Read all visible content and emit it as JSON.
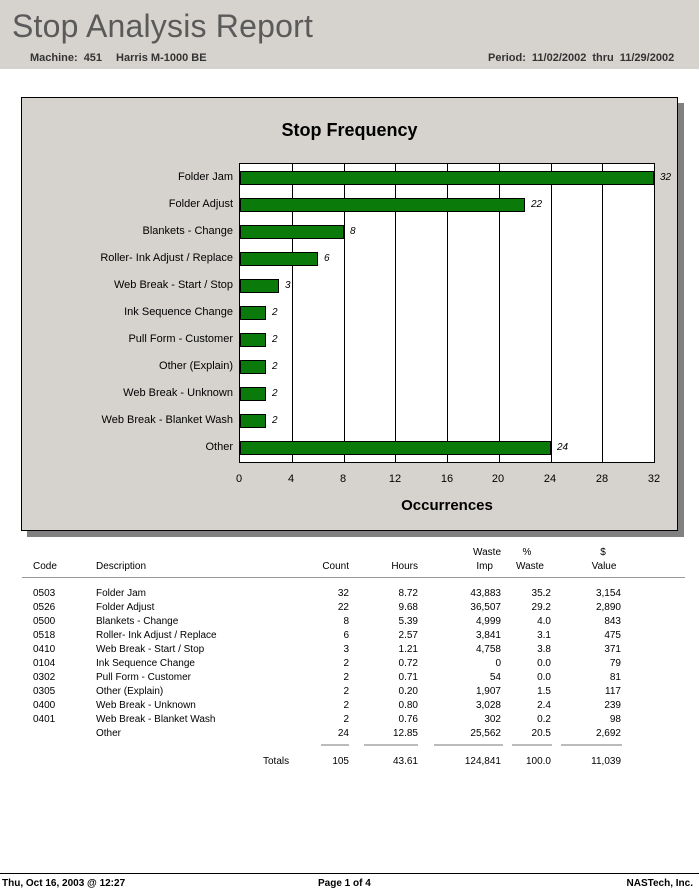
{
  "report": {
    "title": "Stop Analysis Report",
    "machine_label": "Machine:",
    "machine_number": "451",
    "machine_name": "Harris M-1000 BE",
    "period_label": "Period:",
    "period_start": "11/02/2002",
    "period_sep": "thru",
    "period_end": "11/29/2002"
  },
  "chart_data": {
    "type": "bar",
    "orientation": "horizontal",
    "title": "Stop Frequency",
    "xlabel": "Occurrences",
    "ylabel": "",
    "categories": [
      "Folder Jam",
      "Folder Adjust",
      "Blankets - Change",
      "Roller- Ink Adjust / Replace",
      "Web Break - Start / Stop",
      "Ink Sequence Change",
      "Pull Form - Customer",
      "Other (Explain)",
      "Web Break - Unknown",
      "Web Break - Blanket Wash",
      "Other"
    ],
    "values": [
      32,
      22,
      8,
      6,
      3,
      2,
      2,
      2,
      2,
      2,
      24
    ],
    "xlim": [
      0,
      32
    ],
    "xticks": [
      "0",
      "4",
      "8",
      "12",
      "16",
      "20",
      "24",
      "28",
      "32"
    ],
    "grid": "vertical",
    "bar_color": "#0a7a0a"
  },
  "table": {
    "headers": {
      "code": "Code",
      "description": "Description",
      "count": "Count",
      "hours": "Hours",
      "waste_top": "Waste",
      "waste_bottom": "Imp",
      "pct_top": "%",
      "pct_bottom": "Waste",
      "value_top": "$",
      "value_bottom": "Value"
    },
    "rows": [
      {
        "code": "0503",
        "description": "Folder Jam",
        "count": "32",
        "hours": "8.72",
        "waste": "43,883",
        "pct": "35.2",
        "value": "3,154"
      },
      {
        "code": "0526",
        "description": "Folder Adjust",
        "count": "22",
        "hours": "9.68",
        "waste": "36,507",
        "pct": "29.2",
        "value": "2,890"
      },
      {
        "code": "0500",
        "description": "Blankets - Change",
        "count": "8",
        "hours": "5.39",
        "waste": "4,999",
        "pct": "4.0",
        "value": "843"
      },
      {
        "code": "0518",
        "description": "Roller- Ink Adjust / Replace",
        "count": "6",
        "hours": "2.57",
        "waste": "3,841",
        "pct": "3.1",
        "value": "475"
      },
      {
        "code": "0410",
        "description": "Web Break - Start / Stop",
        "count": "3",
        "hours": "1.21",
        "waste": "4,758",
        "pct": "3.8",
        "value": "371"
      },
      {
        "code": "0104",
        "description": "Ink Sequence Change",
        "count": "2",
        "hours": "0.72",
        "waste": "0",
        "pct": "0.0",
        "value": "79"
      },
      {
        "code": "0302",
        "description": "Pull Form - Customer",
        "count": "2",
        "hours": "0.71",
        "waste": "54",
        "pct": "0.0",
        "value": "81"
      },
      {
        "code": "0305",
        "description": "Other (Explain)",
        "count": "2",
        "hours": "0.20",
        "waste": "1,907",
        "pct": "1.5",
        "value": "117"
      },
      {
        "code": "0400",
        "description": "Web Break - Unknown",
        "count": "2",
        "hours": "0.80",
        "waste": "3,028",
        "pct": "2.4",
        "value": "239"
      },
      {
        "code": "0401",
        "description": "Web Break - Blanket Wash",
        "count": "2",
        "hours": "0.76",
        "waste": "302",
        "pct": "0.2",
        "value": "98"
      },
      {
        "code": "",
        "description": "Other",
        "count": "24",
        "hours": "12.85",
        "waste": "25,562",
        "pct": "20.5",
        "value": "2,692"
      }
    ],
    "totals": {
      "label": "Totals",
      "count": "105",
      "hours": "43.61",
      "waste": "124,841",
      "pct": "100.0",
      "value": "11,039"
    }
  },
  "footer": {
    "printed": "Thu, Oct 16, 2003 @ 12:27",
    "page": "Page 1 of 4",
    "company": "NASTech, Inc."
  }
}
